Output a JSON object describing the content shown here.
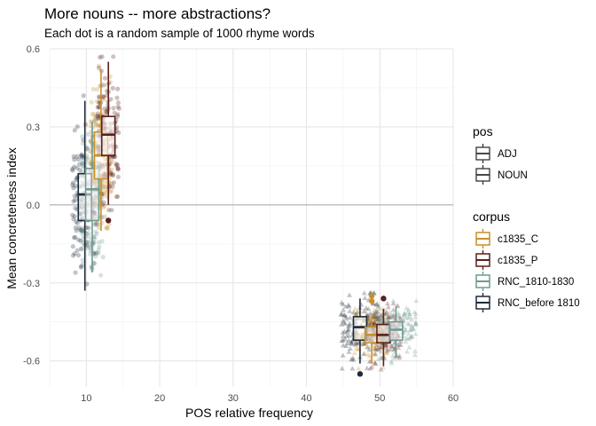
{
  "chart_data": {
    "type": "boxplot+scatter",
    "title": "More nouns -- more abstractions?",
    "subtitle": "Each dot is a random sample of 1000 rhyme words",
    "xlabel": "POS relative frequency",
    "ylabel": "Mean concreteness index",
    "xlim": [
      5,
      60
    ],
    "ylim": [
      -0.7,
      0.6
    ],
    "x_ticks": [
      10,
      20,
      30,
      40,
      50,
      60
    ],
    "x_tick_labels": [
      "10",
      "20",
      "30",
      "40",
      "50",
      "60"
    ],
    "y_ticks": [
      -0.6,
      -0.3,
      0.0,
      0.3,
      0.6
    ],
    "y_tick_labels": [
      "-0.6",
      "-0.3",
      "0.0",
      "0.3",
      "0.6"
    ],
    "hline": 0,
    "grid": true,
    "legend_position": "right",
    "legend_pos": {
      "title": "pos",
      "items": [
        {
          "label": "ADJ",
          "shape": "circle"
        },
        {
          "label": "NOUN",
          "shape": "triangle"
        }
      ]
    },
    "legend_corpus": {
      "title": "corpus",
      "items": [
        {
          "label": "c1835_C",
          "color": "#C8902A"
        },
        {
          "label": "c1835_P",
          "color": "#5B1F1F"
        },
        {
          "label": "RNC_1810-1830",
          "color": "#6E9A90"
        },
        {
          "label": "RNC_before 1810",
          "color": "#1E2B3A"
        }
      ]
    },
    "series": [
      {
        "corpus": "RNC_before 1810",
        "pos": "ADJ",
        "color": "#1E2B3A",
        "x_center": 9.8,
        "x_spread": 1.7,
        "box": {
          "x": 9.8,
          "ymin": -0.33,
          "q1": -0.06,
          "median": 0.04,
          "q3": 0.12,
          "ymax": 0.4
        },
        "outliers": [],
        "n_points": 150
      },
      {
        "corpus": "RNC_1810-1830",
        "pos": "ADJ",
        "color": "#6E9A90",
        "x_center": 10.8,
        "x_spread": 1.5,
        "box": {
          "x": 10.8,
          "ymin": -0.26,
          "q1": -0.06,
          "median": 0.06,
          "q3": 0.14,
          "ymax": 0.32
        },
        "outliers": [],
        "n_points": 150
      },
      {
        "corpus": "c1835_C",
        "pos": "ADJ",
        "color": "#C8902A",
        "x_center": 12.0,
        "x_spread": 1.5,
        "box": {
          "x": 12.0,
          "ymin": -0.1,
          "q1": 0.1,
          "median": 0.19,
          "q3": 0.28,
          "ymax": 0.52
        },
        "outliers": [],
        "n_points": 150
      },
      {
        "corpus": "c1835_P",
        "pos": "ADJ",
        "color": "#5B1F1F",
        "x_center": 13.0,
        "x_spread": 1.5,
        "box": {
          "x": 13.0,
          "ymin": 0.0,
          "q1": 0.19,
          "median": 0.27,
          "q3": 0.34,
          "ymax": 0.55
        },
        "outliers": [
          -0.06
        ],
        "n_points": 150
      },
      {
        "corpus": "RNC_before 1810",
        "pos": "NOUN",
        "color": "#1E2B3A",
        "x_center": 47.3,
        "x_spread": 2.6,
        "box": {
          "x": 47.3,
          "ymin": -0.61,
          "q1": -0.52,
          "median": -0.47,
          "q3": -0.43,
          "ymax": -0.36
        },
        "outliers": [
          -0.65
        ],
        "n_points": 150
      },
      {
        "corpus": "c1835_C",
        "pos": "NOUN",
        "color": "#C8902A",
        "x_center": 48.9,
        "x_spread": 2.4,
        "box": {
          "x": 48.9,
          "ymin": -0.61,
          "q1": -0.53,
          "median": -0.5,
          "q3": -0.47,
          "ymax": -0.42
        },
        "outliers": [
          -0.37,
          -0.35
        ],
        "n_points": 150
      },
      {
        "corpus": "c1835_P",
        "pos": "NOUN",
        "color": "#5B1F1F",
        "x_center": 50.5,
        "x_spread": 2.4,
        "box": {
          "x": 50.5,
          "ymin": -0.62,
          "q1": -0.53,
          "median": -0.5,
          "q3": -0.46,
          "ymax": -0.4
        },
        "outliers": [
          -0.36
        ],
        "n_points": 150
      },
      {
        "corpus": "RNC_1810-1830",
        "pos": "NOUN",
        "color": "#6E9A90",
        "x_center": 52.2,
        "x_spread": 2.8,
        "box": {
          "x": 52.2,
          "ymin": -0.59,
          "q1": -0.52,
          "median": -0.48,
          "q3": -0.45,
          "ymax": -0.39
        },
        "outliers": [],
        "n_points": 150
      }
    ]
  }
}
